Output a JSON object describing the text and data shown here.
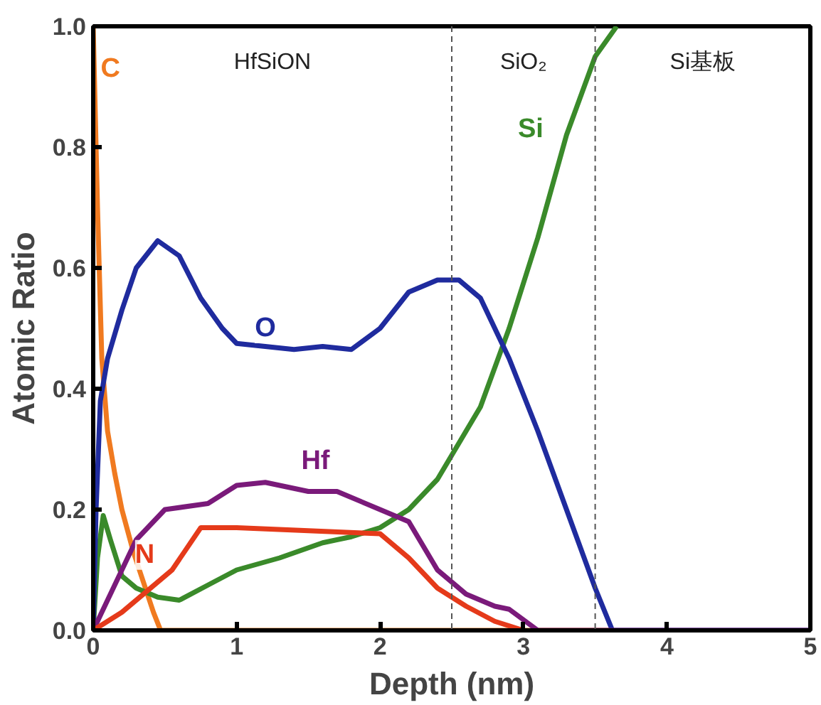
{
  "chart_data": {
    "type": "line",
    "xlabel": "Depth (nm)",
    "ylabel": "Atomic Ratio",
    "xlim": [
      0,
      5
    ],
    "ylim": [
      0,
      1.0
    ],
    "xticks": [
      0,
      1,
      2,
      3,
      4,
      5
    ],
    "yticks": [
      {
        "value": 0,
        "label": "0.0"
      },
      {
        "value": 0.2,
        "label": "0.2"
      },
      {
        "value": 0.4,
        "label": "0.4"
      },
      {
        "value": 0.6,
        "label": "0.6"
      },
      {
        "value": 0.8,
        "label": "0.8"
      },
      {
        "value": 1.0,
        "label": "1.0"
      }
    ],
    "grid": false,
    "marker": "none",
    "line_style": "solid",
    "ref_lines": [
      {
        "axis": "x",
        "value": 2.5,
        "line_style": "dashed",
        "color": "#555555"
      },
      {
        "axis": "x",
        "value": 3.5,
        "line_style": "dashed",
        "color": "#555555"
      }
    ],
    "annotations": [
      "HfSiON",
      "SiO₂",
      "Si基板"
    ],
    "series": [
      {
        "name": "C",
        "color": "#f07a20",
        "x": [
          0,
          0.03,
          0.06,
          0.1,
          0.15,
          0.2,
          0.28,
          0.35,
          0.42,
          0.47,
          1,
          2,
          3,
          3.6
        ],
        "values": [
          1.0,
          0.7,
          0.45,
          0.33,
          0.26,
          0.2,
          0.13,
          0.08,
          0.03,
          0,
          0,
          0,
          0,
          0
        ]
      },
      {
        "name": "Si",
        "color": "#3a8a2a",
        "x": [
          0,
          0.03,
          0.07,
          0.12,
          0.2,
          0.3,
          0.45,
          0.6,
          0.8,
          1.0,
          1.3,
          1.6,
          1.8,
          2.0,
          2.2,
          2.4,
          2.5,
          2.7,
          2.9,
          3.1,
          3.3,
          3.5,
          3.65
        ],
        "values": [
          0,
          0.12,
          0.19,
          0.15,
          0.09,
          0.07,
          0.055,
          0.05,
          0.075,
          0.1,
          0.12,
          0.145,
          0.155,
          0.17,
          0.2,
          0.25,
          0.29,
          0.37,
          0.5,
          0.65,
          0.82,
          0.95,
          1.0
        ]
      },
      {
        "name": "O",
        "color": "#1f2b9e",
        "x": [
          0,
          0.02,
          0.05,
          0.1,
          0.2,
          0.3,
          0.45,
          0.6,
          0.75,
          0.9,
          1.0,
          1.2,
          1.4,
          1.6,
          1.8,
          2.0,
          2.2,
          2.4,
          2.55,
          2.7,
          2.9,
          3.1,
          3.3,
          3.5,
          3.62,
          4,
          5
        ],
        "values": [
          0,
          0.2,
          0.38,
          0.45,
          0.53,
          0.6,
          0.645,
          0.62,
          0.55,
          0.5,
          0.475,
          0.47,
          0.465,
          0.47,
          0.465,
          0.5,
          0.56,
          0.58,
          0.58,
          0.55,
          0.45,
          0.33,
          0.2,
          0.07,
          0,
          0,
          0
        ]
      },
      {
        "name": "Hf",
        "color": "#7a1a7a",
        "x": [
          0,
          0.1,
          0.3,
          0.5,
          0.8,
          1.0,
          1.2,
          1.5,
          1.7,
          2.0,
          2.2,
          2.4,
          2.6,
          2.8,
          2.9,
          3.1,
          4,
          5
        ],
        "values": [
          0,
          0.05,
          0.15,
          0.2,
          0.21,
          0.24,
          0.245,
          0.23,
          0.23,
          0.2,
          0.18,
          0.1,
          0.06,
          0.04,
          0.035,
          0,
          0,
          0
        ]
      },
      {
        "name": "N",
        "color": "#e53a1a",
        "x": [
          0,
          0.2,
          0.45,
          0.55,
          0.75,
          1.0,
          1.5,
          2.0,
          2.2,
          2.4,
          2.6,
          2.8,
          3.0
        ],
        "values": [
          0,
          0.03,
          0.08,
          0.1,
          0.17,
          0.17,
          0.165,
          0.16,
          0.12,
          0.07,
          0.04,
          0.015,
          0
        ]
      }
    ]
  }
}
